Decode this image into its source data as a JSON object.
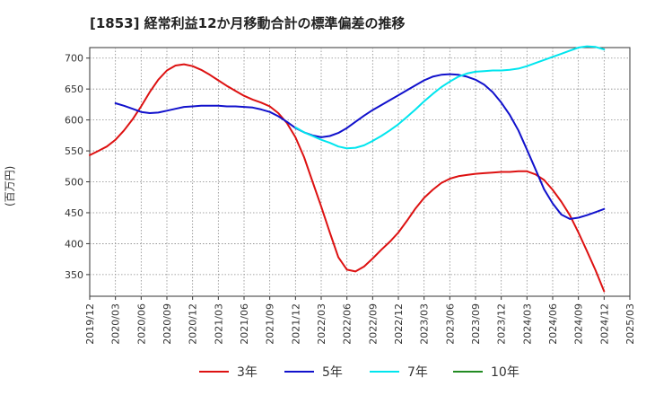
{
  "chart_data": {
    "type": "line",
    "title": "[1853]  経常利益12か月移動合計の標準偏差の推移",
    "xlabel": "",
    "ylabel": "(百万円)",
    "x_ticks": [
      "2019/12",
      "2020/03",
      "2020/06",
      "2020/09",
      "2020/12",
      "2021/03",
      "2021/06",
      "2021/09",
      "2021/12",
      "2022/03",
      "2022/06",
      "2022/09",
      "2022/12",
      "2023/03",
      "2023/06",
      "2023/09",
      "2023/12",
      "2024/03",
      "2024/06",
      "2024/09",
      "2024/12",
      "2025/03"
    ],
    "y_ticks": [
      350,
      400,
      450,
      500,
      550,
      600,
      650,
      700
    ],
    "xlim": [
      "2019/12",
      "2025/03"
    ],
    "ylim": [
      315,
      717
    ],
    "grid": true,
    "legend_position": "bottom",
    "series": [
      {
        "name": "3年",
        "color": "#dd1111",
        "points": [
          [
            "2019/12",
            543
          ],
          [
            "2020/01",
            550
          ],
          [
            "2020/02",
            557
          ],
          [
            "2020/03",
            568
          ],
          [
            "2020/04",
            583
          ],
          [
            "2020/05",
            601
          ],
          [
            "2020/06",
            622
          ],
          [
            "2020/07",
            645
          ],
          [
            "2020/08",
            665
          ],
          [
            "2020/09",
            680
          ],
          [
            "2020/10",
            688
          ],
          [
            "2020/11",
            690
          ],
          [
            "2020/12",
            687
          ],
          [
            "2021/01",
            681
          ],
          [
            "2021/02",
            673
          ],
          [
            "2021/03",
            664
          ],
          [
            "2021/04",
            655
          ],
          [
            "2021/05",
            647
          ],
          [
            "2021/06",
            639
          ],
          [
            "2021/07",
            633
          ],
          [
            "2021/08",
            628
          ],
          [
            "2021/09",
            622
          ],
          [
            "2021/10",
            611
          ],
          [
            "2021/11",
            595
          ],
          [
            "2021/12",
            572
          ],
          [
            "2022/01",
            540
          ],
          [
            "2022/02",
            500
          ],
          [
            "2022/03",
            460
          ],
          [
            "2022/04",
            418
          ],
          [
            "2022/05",
            378
          ],
          [
            "2022/06",
            358
          ],
          [
            "2022/07",
            355
          ],
          [
            "2022/08",
            363
          ],
          [
            "2022/09",
            376
          ],
          [
            "2022/10",
            390
          ],
          [
            "2022/11",
            403
          ],
          [
            "2022/12",
            418
          ],
          [
            "2023/01",
            437
          ],
          [
            "2023/02",
            457
          ],
          [
            "2023/03",
            474
          ],
          [
            "2023/04",
            487
          ],
          [
            "2023/05",
            498
          ],
          [
            "2023/06",
            505
          ],
          [
            "2023/07",
            509
          ],
          [
            "2023/08",
            511
          ],
          [
            "2023/09",
            513
          ],
          [
            "2023/10",
            514
          ],
          [
            "2023/11",
            515
          ],
          [
            "2023/12",
            516
          ],
          [
            "2024/01",
            516
          ],
          [
            "2024/02",
            517
          ],
          [
            "2024/03",
            517
          ],
          [
            "2024/04",
            512
          ],
          [
            "2024/05",
            503
          ],
          [
            "2024/06",
            487
          ],
          [
            "2024/07",
            468
          ],
          [
            "2024/08",
            446
          ],
          [
            "2024/09",
            418
          ],
          [
            "2024/10",
            388
          ],
          [
            "2024/11",
            357
          ],
          [
            "2024/12",
            323
          ]
        ]
      },
      {
        "name": "5年",
        "color": "#1111cc",
        "points": [
          [
            "2020/03",
            627
          ],
          [
            "2020/04",
            623
          ],
          [
            "2020/05",
            618
          ],
          [
            "2020/06",
            613
          ],
          [
            "2020/07",
            611
          ],
          [
            "2020/08",
            612
          ],
          [
            "2020/09",
            615
          ],
          [
            "2020/10",
            618
          ],
          [
            "2020/11",
            621
          ],
          [
            "2020/12",
            622
          ],
          [
            "2021/01",
            623
          ],
          [
            "2021/02",
            623
          ],
          [
            "2021/03",
            623
          ],
          [
            "2021/04",
            622
          ],
          [
            "2021/05",
            622
          ],
          [
            "2021/06",
            621
          ],
          [
            "2021/07",
            620
          ],
          [
            "2021/08",
            617
          ],
          [
            "2021/09",
            613
          ],
          [
            "2021/10",
            606
          ],
          [
            "2021/11",
            597
          ],
          [
            "2021/12",
            587
          ],
          [
            "2022/01",
            580
          ],
          [
            "2022/02",
            575
          ],
          [
            "2022/03",
            572
          ],
          [
            "2022/04",
            574
          ],
          [
            "2022/05",
            579
          ],
          [
            "2022/06",
            587
          ],
          [
            "2022/07",
            597
          ],
          [
            "2022/08",
            607
          ],
          [
            "2022/09",
            616
          ],
          [
            "2022/10",
            624
          ],
          [
            "2022/11",
            632
          ],
          [
            "2022/12",
            640
          ],
          [
            "2023/01",
            648
          ],
          [
            "2023/02",
            656
          ],
          [
            "2023/03",
            664
          ],
          [
            "2023/04",
            670
          ],
          [
            "2023/05",
            673
          ],
          [
            "2023/06",
            674
          ],
          [
            "2023/07",
            673
          ],
          [
            "2023/08",
            670
          ],
          [
            "2023/09",
            665
          ],
          [
            "2023/10",
            657
          ],
          [
            "2023/11",
            645
          ],
          [
            "2023/12",
            628
          ],
          [
            "2024/01",
            608
          ],
          [
            "2024/02",
            583
          ],
          [
            "2024/03",
            552
          ],
          [
            "2024/04",
            520
          ],
          [
            "2024/05",
            488
          ],
          [
            "2024/06",
            465
          ],
          [
            "2024/07",
            447
          ],
          [
            "2024/08",
            440
          ],
          [
            "2024/09",
            442
          ],
          [
            "2024/10",
            446
          ],
          [
            "2024/11",
            451
          ],
          [
            "2024/12",
            456
          ]
        ]
      },
      {
        "name": "7年",
        "color": "#00e5ee",
        "points": [
          [
            "2021/12",
            588
          ],
          [
            "2022/01",
            580
          ],
          [
            "2022/02",
            574
          ],
          [
            "2022/03",
            568
          ],
          [
            "2022/04",
            563
          ],
          [
            "2022/05",
            557
          ],
          [
            "2022/06",
            554
          ],
          [
            "2022/07",
            555
          ],
          [
            "2022/08",
            559
          ],
          [
            "2022/09",
            566
          ],
          [
            "2022/10",
            574
          ],
          [
            "2022/11",
            583
          ],
          [
            "2022/12",
            593
          ],
          [
            "2023/01",
            605
          ],
          [
            "2023/02",
            617
          ],
          [
            "2023/03",
            630
          ],
          [
            "2023/04",
            642
          ],
          [
            "2023/05",
            653
          ],
          [
            "2023/06",
            662
          ],
          [
            "2023/07",
            670
          ],
          [
            "2023/08",
            675
          ],
          [
            "2023/09",
            678
          ],
          [
            "2023/10",
            679
          ],
          [
            "2023/11",
            680
          ],
          [
            "2023/12",
            680
          ],
          [
            "2024/01",
            681
          ],
          [
            "2024/02",
            683
          ],
          [
            "2024/03",
            687
          ],
          [
            "2024/04",
            692
          ],
          [
            "2024/05",
            697
          ],
          [
            "2024/06",
            702
          ],
          [
            "2024/07",
            707
          ],
          [
            "2024/08",
            712
          ],
          [
            "2024/09",
            717
          ],
          [
            "2024/10",
            719
          ],
          [
            "2024/11",
            718
          ],
          [
            "2024/12",
            714
          ]
        ]
      },
      {
        "name": "10年",
        "color": "#228b22",
        "points": []
      }
    ]
  }
}
